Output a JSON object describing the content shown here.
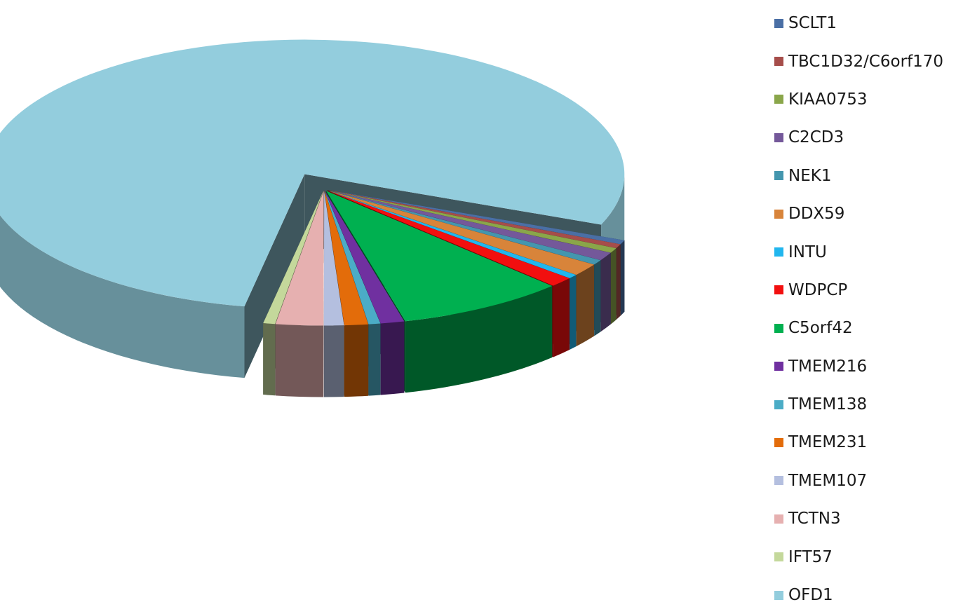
{
  "chart_data": {
    "type": "pie",
    "style": "3d-exploded",
    "title": "",
    "legend_position": "right",
    "series": [
      {
        "name": "SCLT1",
        "value": 0.5,
        "color": "#4a6fa5"
      },
      {
        "name": "TBC1D32/C6orf170",
        "value": 0.5,
        "color": "#a64d4a"
      },
      {
        "name": "KIAA0753",
        "value": 0.6,
        "color": "#8aa64a"
      },
      {
        "name": "C2CD3",
        "value": 1.0,
        "color": "#74589a"
      },
      {
        "name": "NEK1",
        "value": 0.6,
        "color": "#4496ae"
      },
      {
        "name": "DDX59",
        "value": 1.5,
        "color": "#d8843a"
      },
      {
        "name": "INTU",
        "value": 0.5,
        "color": "#21b6ee"
      },
      {
        "name": "WDPCP",
        "value": 1.2,
        "color": "#f20f0f"
      },
      {
        "name": "C5orf42",
        "value": 8.5,
        "color": "#00b050"
      },
      {
        "name": "TMEM216",
        "value": 1.2,
        "color": "#7030a0"
      },
      {
        "name": "TMEM138",
        "value": 0.6,
        "color": "#4bacc6"
      },
      {
        "name": "TMEM231",
        "value": 1.2,
        "color": "#e36c0a"
      },
      {
        "name": "TMEM107",
        "value": 1.0,
        "color": "#b4bfdf"
      },
      {
        "name": "TCTN3",
        "value": 2.4,
        "color": "#e6b0b0"
      },
      {
        "name": "IFT57",
        "value": 0.6,
        "color": "#c4d89b"
      },
      {
        "name": "OFD1",
        "value": 78.1,
        "color": "#93cddd"
      }
    ]
  }
}
